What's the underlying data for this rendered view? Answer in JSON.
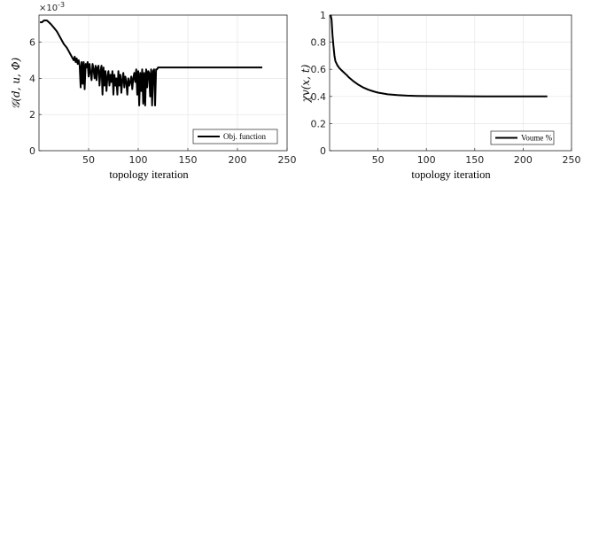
{
  "chart_data": [
    {
      "type": "line",
      "ylabel": "𝒢(d, u, Φ)",
      "xlabel": "topology iteration",
      "y_exponent_label": "×10",
      "y_exponent_power": "-3",
      "xlim": [
        0,
        250
      ],
      "ylim": [
        0,
        0.0075
      ],
      "xticks": [
        50,
        100,
        150,
        200,
        250
      ],
      "yticks": [
        0,
        0.002,
        0.004,
        0.006
      ],
      "ytick_labels": [
        "0",
        "2",
        "4",
        "6"
      ],
      "grid": true,
      "legend_position": "bottom-right",
      "series": [
        {
          "name": "Obj. function",
          "x": [
            1,
            3,
            5,
            8,
            10,
            12,
            15,
            18,
            20,
            22,
            25,
            28,
            30,
            32,
            34,
            35,
            36,
            37,
            38,
            39,
            40,
            41,
            42,
            43,
            44,
            45,
            46,
            47,
            48,
            49,
            50,
            51,
            52,
            53,
            54,
            55,
            56,
            57,
            58,
            59,
            60,
            61,
            62,
            63,
            64,
            65,
            66,
            67,
            68,
            69,
            70,
            71,
            72,
            73,
            74,
            75,
            76,
            77,
            78,
            79,
            80,
            81,
            82,
            83,
            84,
            85,
            86,
            87,
            88,
            89,
            90,
            91,
            92,
            93,
            94,
            95,
            96,
            97,
            98,
            99,
            100,
            101,
            102,
            103,
            104,
            105,
            106,
            107,
            108,
            109,
            110,
            111,
            112,
            113,
            114,
            115,
            116,
            117,
            118,
            119,
            120,
            130,
            140,
            150,
            160,
            170,
            180,
            190,
            200,
            210,
            220,
            225
          ],
          "y": [
            0.0071,
            0.0071,
            0.0072,
            0.0072,
            0.0071,
            0.007,
            0.0068,
            0.0066,
            0.0064,
            0.0062,
            0.0059,
            0.0057,
            0.0055,
            0.0053,
            0.0051,
            0.005,
            0.0052,
            0.0049,
            0.0051,
            0.0048,
            0.005,
            0.0047,
            0.0035,
            0.0049,
            0.0037,
            0.0049,
            0.0034,
            0.0048,
            0.0046,
            0.0049,
            0.0041,
            0.0048,
            0.0043,
            0.0039,
            0.0048,
            0.0045,
            0.004,
            0.0047,
            0.0039,
            0.0046,
            0.0047,
            0.0036,
            0.0044,
            0.0047,
            0.0031,
            0.0046,
            0.0036,
            0.0044,
            0.0033,
            0.0041,
            0.0044,
            0.0036,
            0.0042,
            0.0038,
            0.0044,
            0.0031,
            0.0042,
            0.0036,
            0.004,
            0.0031,
            0.0044,
            0.0036,
            0.0042,
            0.0032,
            0.0039,
            0.0043,
            0.0035,
            0.0041,
            0.0038,
            0.0031,
            0.004,
            0.0036,
            0.0038,
            0.0041,
            0.0034,
            0.004,
            0.0043,
            0.0038,
            0.0045,
            0.0031,
            0.0044,
            0.0025,
            0.0043,
            0.0033,
            0.0045,
            0.0026,
            0.0043,
            0.0025,
            0.0045,
            0.0035,
            0.0044,
            0.0043,
            0.003,
            0.0045,
            0.0025,
            0.0044,
            0.0045,
            0.0025,
            0.0045,
            0.0045,
            0.0046,
            0.0046,
            0.0046,
            0.0046,
            0.0046,
            0.0046,
            0.0046,
            0.0046,
            0.0046,
            0.0046,
            0.0046,
            0.0046
          ]
        }
      ]
    },
    {
      "type": "line",
      "ylabel": "χv(x, t)",
      "xlabel": "topology iteration",
      "xlim": [
        0,
        250
      ],
      "ylim": [
        0,
        1
      ],
      "xticks": [
        50,
        100,
        150,
        200,
        250
      ],
      "yticks": [
        0,
        0.2,
        0.4,
        0.6,
        0.8,
        1
      ],
      "ytick_labels": [
        "0",
        "0.2",
        "0.4",
        "0.6",
        "0.8",
        "1"
      ],
      "grid": true,
      "legend_position": "bottom-right",
      "series": [
        {
          "name": "Voume %",
          "x": [
            1,
            2,
            3,
            4,
            5,
            6,
            8,
            10,
            12,
            15,
            18,
            20,
            25,
            30,
            35,
            40,
            45,
            50,
            60,
            70,
            80,
            90,
            100,
            120,
            140,
            160,
            180,
            200,
            225
          ],
          "y": [
            1.0,
            0.97,
            0.85,
            0.77,
            0.7,
            0.66,
            0.63,
            0.61,
            0.595,
            0.575,
            0.555,
            0.54,
            0.51,
            0.485,
            0.465,
            0.45,
            0.438,
            0.428,
            0.416,
            0.41,
            0.406,
            0.404,
            0.403,
            0.402,
            0.401,
            0.4,
            0.4,
            0.4,
            0.4
          ]
        }
      ]
    }
  ]
}
